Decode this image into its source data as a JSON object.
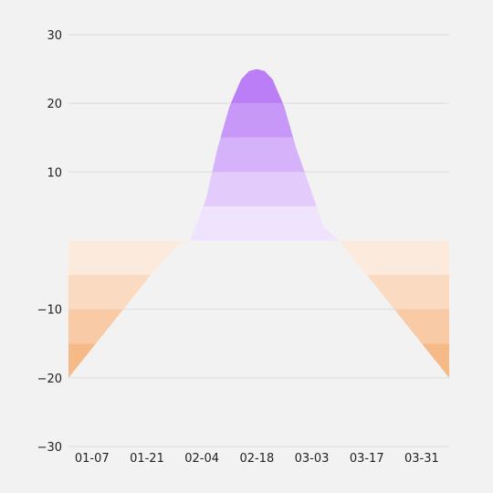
{
  "chart_data": {
    "type": "area",
    "title": "",
    "xlabel": "",
    "ylabel": "",
    "x": [
      "01-01",
      "01-08",
      "01-15",
      "01-22",
      "01-29",
      "02-01",
      "02-05",
      "02-08",
      "02-11",
      "02-14",
      "02-16",
      "02-18",
      "02-20",
      "02-22",
      "02-25",
      "02-28",
      "03-03",
      "03-06",
      "03-10",
      "03-17",
      "03-24",
      "03-31",
      "04-07"
    ],
    "values": [
      -20,
      -15,
      -10,
      -5,
      -0.5,
      0,
      6,
      13.5,
      19.5,
      23.5,
      24.7,
      25,
      24.7,
      23.5,
      19.5,
      13.5,
      7,
      2,
      0,
      -5,
      -10,
      -15,
      -20
    ],
    "ylim": [
      -30,
      30
    ],
    "yticks": [
      -30,
      -20,
      -10,
      10,
      20,
      30
    ],
    "ytick_labels": [
      "−30",
      "−20",
      "−10",
      "10",
      "20",
      "30"
    ],
    "xtick_labels": [
      "01-07",
      "01-21",
      "02-04",
      "02-18",
      "03-03",
      "03-17",
      "03-31"
    ],
    "xtick_dates": [
      "01-07",
      "01-21",
      "02-04",
      "02-18",
      "03-03",
      "03-17",
      "03-31"
    ],
    "x_range": [
      "01-01",
      "04-07"
    ],
    "grid": true,
    "positive_bands": [
      {
        "from": 0,
        "to": 5,
        "color": "#efe3fd"
      },
      {
        "from": 5,
        "to": 10,
        "color": "#e3ccfb"
      },
      {
        "from": 10,
        "to": 15,
        "color": "#d5b2fa"
      },
      {
        "from": 15,
        "to": 20,
        "color": "#c898f8"
      },
      {
        "from": 20,
        "to": 25,
        "color": "#bc7ef6"
      }
    ],
    "negative_bands": [
      {
        "from": 0,
        "to": -5,
        "color": "#fcebdc"
      },
      {
        "from": -5,
        "to": -10,
        "color": "#fadbc2"
      },
      {
        "from": -10,
        "to": -15,
        "color": "#f8caa6"
      },
      {
        "from": -15,
        "to": -20,
        "color": "#f6ba88"
      }
    ]
  }
}
